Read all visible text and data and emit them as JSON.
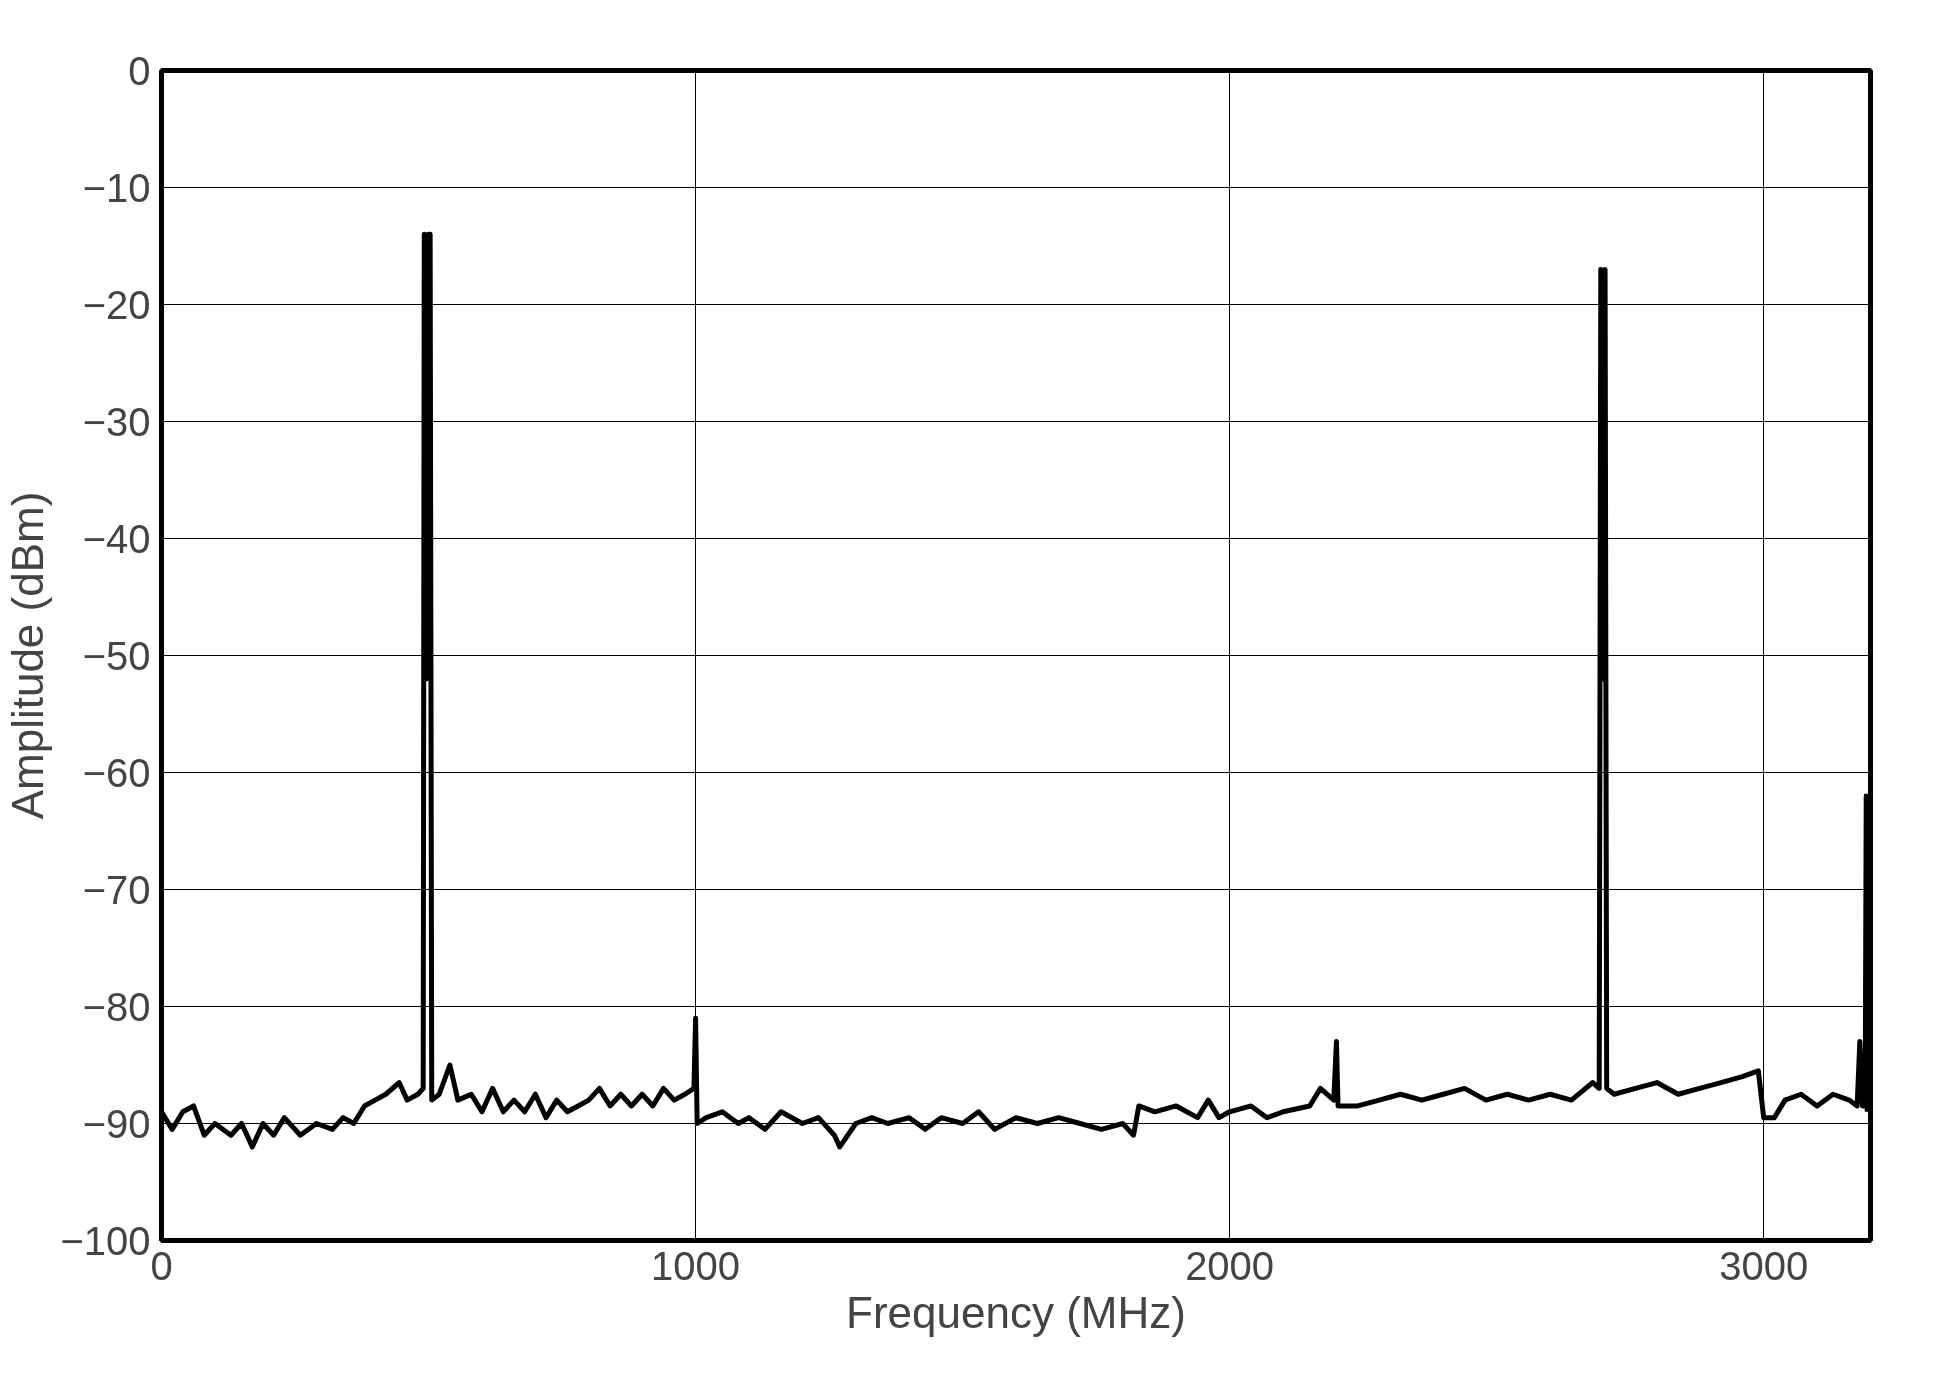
{
  "chart_data": {
    "type": "line",
    "xlabel": "Frequency (MHz)",
    "ylabel": "Amplitude (dBm)",
    "xlim": [
      0,
      3200
    ],
    "ylim": [
      -100,
      0
    ],
    "xticks": [
      0,
      1000,
      2000,
      3000
    ],
    "yticks": [
      -100,
      -90,
      -80,
      -70,
      -60,
      -50,
      -40,
      -30,
      -20,
      -10,
      0
    ],
    "grid": true,
    "marker": "none",
    "line_style": "solid",
    "series": [
      {
        "color": "#000000",
        "x": [
          0,
          20,
          40,
          60,
          80,
          100,
          130,
          150,
          170,
          190,
          210,
          230,
          260,
          290,
          320,
          340,
          360,
          380,
          400,
          420,
          445,
          460,
          480,
          490,
          492,
          496,
          500,
          503,
          506,
          520,
          540,
          555,
          580,
          600,
          620,
          640,
          660,
          680,
          700,
          720,
          740,
          760,
          780,
          800,
          820,
          840,
          860,
          880,
          900,
          920,
          940,
          960,
          980,
          997,
          1000,
          1003,
          1020,
          1050,
          1080,
          1100,
          1130,
          1160,
          1200,
          1230,
          1260,
          1270,
          1300,
          1330,
          1360,
          1400,
          1430,
          1460,
          1500,
          1530,
          1560,
          1600,
          1640,
          1680,
          1720,
          1760,
          1800,
          1820,
          1830,
          1860,
          1900,
          1940,
          1960,
          1980,
          2000,
          2040,
          2070,
          2100,
          2150,
          2170,
          2195,
          2200,
          2203,
          2240,
          2280,
          2320,
          2360,
          2400,
          2440,
          2480,
          2520,
          2560,
          2600,
          2640,
          2680,
          2692,
          2695,
          2699,
          2703,
          2706,
          2720,
          2760,
          2800,
          2840,
          2880,
          2920,
          2960,
          2990,
          3000,
          3020,
          3040,
          3070,
          3100,
          3130,
          3160,
          3175,
          3180,
          3185,
          3190,
          3192,
          3194
        ],
        "values": [
          -89,
          -90.5,
          -89,
          -88.5,
          -91,
          -90,
          -91,
          -90,
          -92,
          -90,
          -91,
          -89.5,
          -91,
          -90,
          -90.5,
          -89.5,
          -90,
          -88.5,
          -88,
          -87.5,
          -86.5,
          -88,
          -87.5,
          -87,
          -14,
          -52,
          -14,
          -14,
          -88,
          -87.5,
          -85,
          -88,
          -87.5,
          -89,
          -87,
          -89,
          -88,
          -89,
          -87.5,
          -89.5,
          -88,
          -89,
          -88.5,
          -88,
          -87,
          -88.5,
          -87.5,
          -88.5,
          -87.5,
          -88.5,
          -87,
          -88,
          -87.5,
          -87,
          -81,
          -90,
          -89.5,
          -89,
          -90,
          -89.5,
          -90.5,
          -89,
          -90,
          -89.5,
          -91,
          -92,
          -90,
          -89.5,
          -90,
          -89.5,
          -90.5,
          -89.5,
          -90,
          -89,
          -90.5,
          -89.5,
          -90,
          -89.5,
          -90,
          -90.5,
          -90,
          -91,
          -88.5,
          -89,
          -88.5,
          -89.5,
          -88,
          -89.5,
          -89,
          -88.5,
          -89.5,
          -89,
          -88.5,
          -87,
          -88,
          -83,
          -88.5,
          -88.5,
          -88,
          -87.5,
          -88,
          -87.5,
          -87,
          -88,
          -87.5,
          -88,
          -87.5,
          -88,
          -86.5,
          -87,
          -17,
          -52,
          -17,
          -87,
          -87.5,
          -87,
          -86.5,
          -87.5,
          -87,
          -86.5,
          -86,
          -85.5,
          -89.5,
          -89.5,
          -88,
          -87.5,
          -88.5,
          -87.5,
          -88,
          -88.5,
          -83,
          -88.5,
          -88.5,
          -62,
          -89
        ]
      }
    ]
  }
}
